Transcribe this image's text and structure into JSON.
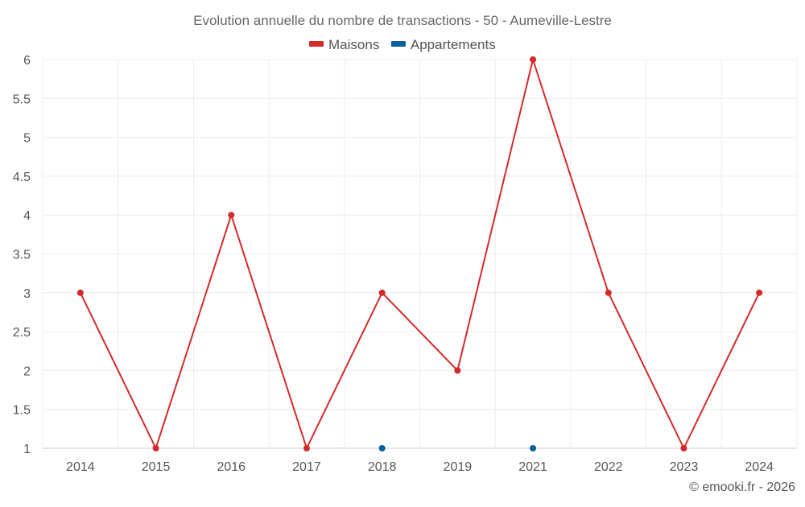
{
  "chart_data": {
    "type": "line",
    "title": "Evolution annuelle du nombre de transactions - 50 - Aumeville-Lestre",
    "categories": [
      "2014",
      "2015",
      "2016",
      "2017",
      "2018",
      "2019",
      "2021",
      "2022",
      "2023",
      "2024"
    ],
    "series": [
      {
        "name": "Maisons",
        "color": "#d42a2a",
        "values": [
          3,
          1,
          4,
          1,
          3,
          2,
          6,
          3,
          1,
          3
        ]
      },
      {
        "name": "Appartements",
        "color": "#06609a",
        "values": [
          null,
          null,
          null,
          null,
          1,
          null,
          1,
          null,
          null,
          null
        ]
      }
    ],
    "yticks": [
      "1",
      "1.5",
      "2",
      "2.5",
      "3",
      "3.5",
      "4",
      "4.5",
      "5",
      "5.5",
      "6"
    ],
    "ylim": [
      1,
      6
    ],
    "grid": true,
    "legend_position": "top-center"
  },
  "footer": {
    "credit": "© emooki.fr - 2026"
  }
}
